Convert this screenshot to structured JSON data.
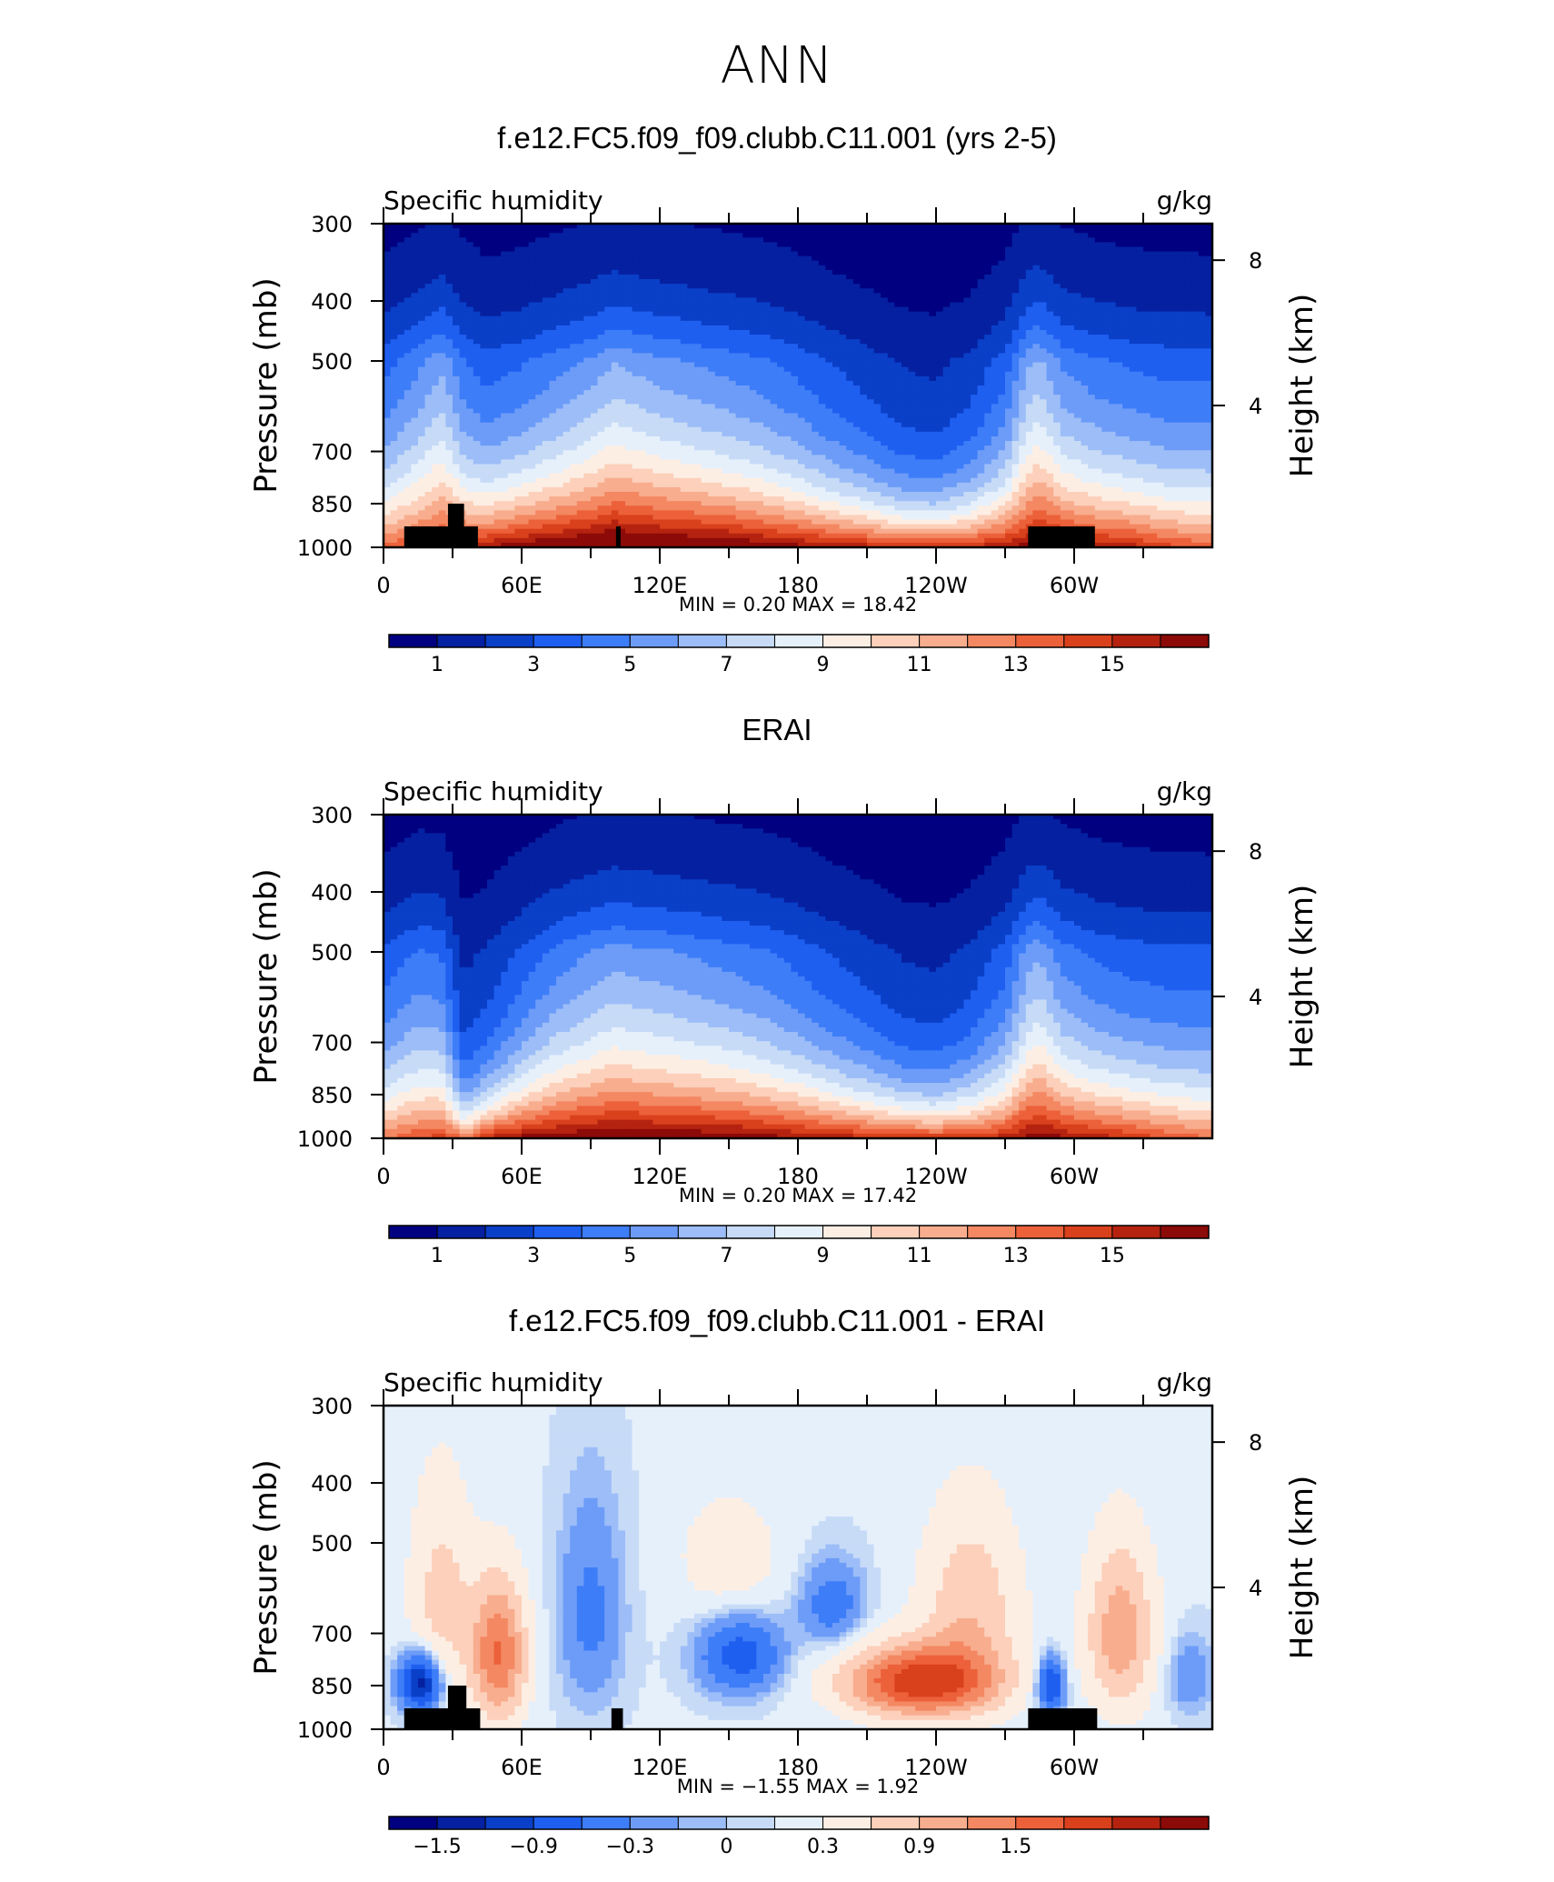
{
  "page_title": "ANN",
  "colors": {
    "humidity_scale": [
      "#000080",
      "#0520a0",
      "#0a3fc8",
      "#1f5ff0",
      "#3e7df8",
      "#6d9cf8",
      "#9cbdf7",
      "#c7dbf7",
      "#e6f0fb",
      "#fdeee4",
      "#fcd0ba",
      "#f8ad8e",
      "#f38862",
      "#ec613a",
      "#d9401c",
      "#b52310",
      "#8c0a08"
    ],
    "difference_scale": [
      "#000080",
      "#0520a0",
      "#0a3fc8",
      "#1f5ff0",
      "#3e7df8",
      "#6d9cf8",
      "#9cbdf7",
      "#c7dbf7",
      "#e6f0fb",
      "#fdeee4",
      "#fcd0ba",
      "#f8ad8e",
      "#f38862",
      "#ec613a",
      "#d9401c",
      "#b52310",
      "#8c0a08"
    ]
  },
  "chart_data": [
    {
      "type": "heatmap",
      "title": "f.e12.FC5.f09_f09.clubb.C11.001 (yrs 2-5)",
      "left_label": "Specific humidity",
      "right_label": "g/kg",
      "ylabel": "Pressure (mb)",
      "y2label": "Height (km)",
      "x_ticks": [
        "0",
        "60E",
        "120E",
        "180",
        "120W",
        "60W"
      ],
      "y_ticks": [
        "300",
        "400",
        "500",
        "700",
        "850",
        "1000"
      ],
      "y2_ticks": [
        "8",
        "4"
      ],
      "xlim": [
        0,
        360
      ],
      "ylim": [
        1000,
        300
      ],
      "stats": "MIN =    0.20   MAX =   18.42",
      "colorbar_labels": [
        "1",
        "3",
        "5",
        "7",
        "9",
        "11",
        "13",
        "15"
      ],
      "colorbar_levels": [
        0,
        1,
        2,
        3,
        4,
        5,
        6,
        7,
        8,
        9,
        10,
        11,
        12,
        13,
        14,
        15,
        16
      ],
      "field": {
        "longitude": [
          0,
          15,
          25,
          35,
          45,
          60,
          75,
          90,
          100,
          110,
          120,
          135,
          150,
          165,
          180,
          195,
          210,
          225,
          240,
          255,
          270,
          280,
          285,
          295,
          310,
          325,
          340,
          360
        ],
        "q_500mb": [
          2.2,
          2.8,
          3.4,
          2.6,
          2.2,
          2.4,
          2.8,
          3.2,
          3.6,
          3.4,
          3.2,
          3.0,
          2.8,
          2.6,
          2.3,
          1.9,
          1.6,
          1.3,
          1.2,
          1.5,
          2.2,
          3.6,
          3.8,
          3.0,
          2.6,
          2.4,
          2.3,
          2.2
        ],
        "q_surface": [
          13.5,
          14.5,
          15.0,
          15.5,
          16.0,
          17.0,
          17.5,
          18.0,
          18.4,
          18.2,
          18.0,
          17.8,
          17.6,
          17.0,
          16.5,
          16.0,
          15.6,
          15.2,
          15.0,
          15.3,
          15.8,
          16.5,
          17.0,
          16.6,
          16.0,
          15.5,
          14.5,
          13.5
        ],
        "scale_height_mb": [
          260,
          290,
          320,
          240,
          230,
          240,
          255,
          270,
          285,
          280,
          275,
          265,
          255,
          245,
          230,
          215,
          200,
          185,
          180,
          200,
          230,
          290,
          300,
          260,
          250,
          245,
          240,
          260
        ]
      },
      "topography": [
        {
          "lon_start": 9,
          "lon_end": 41,
          "pressure_top": 925
        },
        {
          "lon_start": 28,
          "lon_end": 35,
          "pressure_top": 850
        },
        {
          "lon_start": 101,
          "lon_end": 103,
          "pressure_top": 925
        },
        {
          "lon_start": 280,
          "lon_end": 309,
          "pressure_top": 925
        }
      ]
    },
    {
      "type": "heatmap",
      "title": "ERAI",
      "left_label": "Specific humidity",
      "right_label": "g/kg",
      "ylabel": "Pressure (mb)",
      "y2label": "Height (km)",
      "x_ticks": [
        "0",
        "60E",
        "120E",
        "180",
        "120W",
        "60W"
      ],
      "y_ticks": [
        "300",
        "400",
        "500",
        "700",
        "850",
        "1000"
      ],
      "y2_ticks": [
        "8",
        "4"
      ],
      "xlim": [
        0,
        360
      ],
      "ylim": [
        1000,
        300
      ],
      "stats": "MIN =    0.20   MAX =   17.42",
      "colorbar_labels": [
        "1",
        "3",
        "5",
        "7",
        "9",
        "11",
        "13",
        "15"
      ],
      "colorbar_levels": [
        0,
        1,
        2,
        3,
        4,
        5,
        6,
        7,
        8,
        9,
        10,
        11,
        12,
        13,
        14,
        15,
        16
      ],
      "field": {
        "longitude": [
          0,
          15,
          25,
          35,
          45,
          60,
          75,
          90,
          100,
          110,
          120,
          135,
          150,
          165,
          180,
          195,
          210,
          225,
          240,
          255,
          270,
          280,
          285,
          295,
          310,
          325,
          340,
          360
        ],
        "q_500mb": [
          2.0,
          2.6,
          2.6,
          1.4,
          1.6,
          2.2,
          2.8,
          3.2,
          3.4,
          3.3,
          3.2,
          3.0,
          2.8,
          2.6,
          2.3,
          1.9,
          1.6,
          1.3,
          1.2,
          1.5,
          2.2,
          3.4,
          3.6,
          2.8,
          2.4,
          2.2,
          2.1,
          2.0
        ],
        "q_surface": [
          13.0,
          14.0,
          14.5,
          13.0,
          15.5,
          16.5,
          17.0,
          17.2,
          17.4,
          17.3,
          17.2,
          17.1,
          17.0,
          16.6,
          16.2,
          15.8,
          15.4,
          15.0,
          14.8,
          15.0,
          15.5,
          16.4,
          16.8,
          16.2,
          15.6,
          15.0,
          14.0,
          13.0
        ],
        "scale_height_mb": [
          250,
          260,
          240,
          150,
          170,
          210,
          240,
          260,
          275,
          272,
          268,
          262,
          255,
          245,
          230,
          215,
          200,
          185,
          180,
          195,
          225,
          280,
          290,
          255,
          240,
          235,
          235,
          250
        ]
      },
      "topography": []
    },
    {
      "type": "heatmap",
      "title": "f.e12.FC5.f09_f09.clubb.C11.001 - ERAI",
      "left_label": "Specific humidity",
      "right_label": "g/kg",
      "ylabel": "Pressure (mb)",
      "y2label": "Height (km)",
      "x_ticks": [
        "0",
        "60E",
        "120E",
        "180",
        "120W",
        "60W"
      ],
      "y_ticks": [
        "300",
        "400",
        "500",
        "700",
        "850",
        "1000"
      ],
      "y2_ticks": [
        "8",
        "4"
      ],
      "xlim": [
        0,
        360
      ],
      "ylim": [
        1000,
        300
      ],
      "stats": "MIN =   −1.55   MAX =    1.92",
      "colorbar_labels": [
        "−1.5",
        "−0.9",
        "−0.3",
        "0",
        "0.3",
        "0.9",
        "1.5"
      ],
      "colorbar_levels": [
        -1.8,
        -1.5,
        -1.2,
        -0.9,
        -0.6,
        -0.3,
        -0.1,
        0,
        0.1,
        0.3,
        0.6,
        0.9,
        1.2,
        1.5,
        1.8
      ],
      "field": {
        "anomalies": [
          {
            "lon": 16,
            "p": 840,
            "amp": -1.55,
            "lon_width": 9,
            "p_width": 90
          },
          {
            "lon": 50,
            "p": 760,
            "amp": 1.4,
            "lon_width": 12,
            "p_width": 200
          },
          {
            "lon": 25,
            "p": 620,
            "amp": 0.6,
            "lon_width": 14,
            "p_width": 250
          },
          {
            "lon": 90,
            "p": 650,
            "amp": -0.5,
            "lon_width": 14,
            "p_width": 250
          },
          {
            "lon": 155,
            "p": 760,
            "amp": -0.9,
            "lon_width": 18,
            "p_width": 110
          },
          {
            "lon": 150,
            "p": 530,
            "amp": 0.4,
            "lon_width": 22,
            "p_width": 120
          },
          {
            "lon": 195,
            "p": 630,
            "amp": -0.6,
            "lon_width": 14,
            "p_width": 100
          },
          {
            "lon": 233,
            "p": 840,
            "amp": 1.92,
            "lon_width": 32,
            "p_width": 110
          },
          {
            "lon": 255,
            "p": 640,
            "amp": 0.7,
            "lon_width": 22,
            "p_width": 230
          },
          {
            "lon": 290,
            "p": 850,
            "amp": -1.1,
            "lon_width": 6,
            "p_width": 90
          },
          {
            "lon": 320,
            "p": 700,
            "amp": 1.0,
            "lon_width": 15,
            "p_width": 220
          },
          {
            "lon": 350,
            "p": 820,
            "amp": -0.4,
            "lon_width": 10,
            "p_width": 120
          }
        ]
      },
      "topography": [
        {
          "lon_start": 9,
          "lon_end": 42,
          "pressure_top": 925
        },
        {
          "lon_start": 28,
          "lon_end": 36,
          "pressure_top": 850
        },
        {
          "lon_start": 99,
          "lon_end": 104,
          "pressure_top": 925
        },
        {
          "lon_start": 280,
          "lon_end": 310,
          "pressure_top": 925
        }
      ]
    }
  ]
}
